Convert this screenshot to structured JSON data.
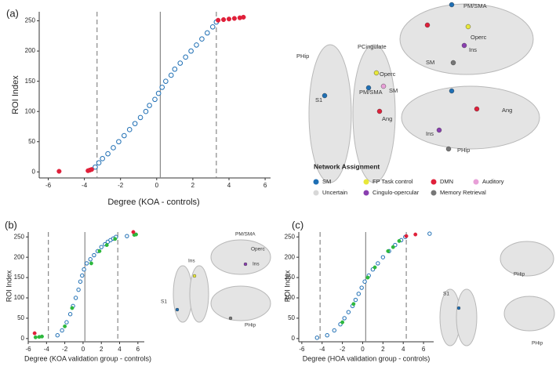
{
  "chart_data": [
    {
      "type": "scatter",
      "x_label": "Degree (KOA - controls)",
      "y_label": "ROI Index",
      "xlim": [
        -6.5,
        6.3
      ],
      "ylim": [
        -10,
        265
      ],
      "xticks": [
        -6,
        -4,
        -2,
        0,
        2,
        4,
        6
      ],
      "yticks": [
        0,
        50,
        100,
        150,
        200,
        250
      ],
      "vlines": [
        {
          "x": -3.3,
          "dashed": true
        },
        {
          "x": 0.2,
          "dashed": false
        },
        {
          "x": 3.3,
          "dashed": true
        }
      ],
      "series": [
        {
          "color": "#1f6fb4",
          "marker": "hollow",
          "x": [
            -3.4,
            -3.2,
            -3.0,
            -2.7,
            -2.4,
            -2.1,
            -1.8,
            -1.5,
            -1.2,
            -0.9,
            -0.6,
            -0.4,
            -0.1,
            0.1,
            0.3,
            0.5,
            0.8,
            1.0,
            1.3,
            1.6,
            1.9,
            2.2,
            2.5,
            2.8,
            3.1,
            3.3
          ],
          "values": [
            8,
            15,
            22,
            30,
            40,
            50,
            60,
            70,
            80,
            90,
            100,
            110,
            120,
            130,
            140,
            150,
            160,
            170,
            180,
            190,
            200,
            210,
            220,
            230,
            240,
            248
          ]
        },
        {
          "color": "#e0203a",
          "marker": "filled",
          "x": [
            -5.4,
            -3.8,
            -3.7,
            -3.6,
            3.4,
            3.7,
            4.0,
            4.3,
            4.6,
            4.8
          ],
          "values": [
            1,
            2,
            3,
            4,
            251,
            252,
            253,
            254,
            255,
            256
          ]
        }
      ]
    },
    {
      "type": "scatter",
      "x_label": "Degree (KOA validation group - controls)",
      "y_label": "ROI Index",
      "xlim": [
        -6,
        6.7
      ],
      "ylim": [
        -8,
        262
      ],
      "xticks": [
        -6,
        -4,
        -2,
        0,
        2,
        4,
        6
      ],
      "yticks": [
        0,
        50,
        100,
        150,
        200,
        250
      ],
      "vlines": [
        {
          "x": -3.8,
          "dashed": true
        },
        {
          "x": 0.2,
          "dashed": false
        },
        {
          "x": 3.8,
          "dashed": true
        }
      ],
      "series": [
        {
          "color": "#1f6fb4",
          "marker": "hollow",
          "x": [
            -2.8,
            -2.3,
            -1.8,
            -1.4,
            -1.1,
            -0.8,
            -0.5,
            -0.3,
            -0.1,
            0.1,
            0.4,
            0.8,
            1.2,
            1.6,
            2.0,
            2.4,
            2.7,
            3.0,
            3.3,
            3.6,
            4.8
          ],
          "values": [
            8,
            20,
            40,
            60,
            80,
            100,
            120,
            140,
            155,
            170,
            185,
            195,
            205,
            215,
            225,
            232,
            238,
            242,
            246,
            250,
            252
          ]
        },
        {
          "color": "#2db83d",
          "marker": "filled",
          "x": [
            -5.2,
            -4.8,
            -4.5,
            -2.0,
            -1.2,
            0.9,
            1.8,
            2.6,
            3.5,
            5.6,
            5.8
          ],
          "values": [
            3,
            4,
            5,
            30,
            75,
            185,
            215,
            230,
            245,
            255,
            256
          ]
        },
        {
          "color": "#e0203a",
          "marker": "filled",
          "x": [
            -5.3,
            5.5
          ],
          "values": [
            13,
            262
          ]
        }
      ]
    },
    {
      "type": "scatter",
      "x_label": "Degree (HOA validation group - controls)",
      "y_label": "ROI Index",
      "xlim": [
        -6.3,
        7
      ],
      "ylim": [
        -8,
        262
      ],
      "xticks": [
        -6,
        -4,
        -2,
        0,
        2,
        4,
        6
      ],
      "yticks": [
        0,
        50,
        100,
        150,
        200,
        250
      ],
      "vlines": [
        {
          "x": -4.2,
          "dashed": true
        },
        {
          "x": 0.3,
          "dashed": false
        },
        {
          "x": 4.3,
          "dashed": true
        }
      ],
      "series": [
        {
          "color": "#1f6fb4",
          "marker": "hollow",
          "x": [
            -4.5,
            -3.5,
            -2.8,
            -2.2,
            -1.8,
            -1.4,
            -1.0,
            -0.7,
            -0.4,
            -0.1,
            0.2,
            0.6,
            1.0,
            1.5,
            2.0,
            2.6,
            3.2,
            3.8,
            4.2,
            6.6
          ],
          "values": [
            2,
            8,
            20,
            35,
            50,
            65,
            80,
            95,
            110,
            125,
            140,
            155,
            170,
            185,
            200,
            215,
            230,
            242,
            250,
            258
          ]
        },
        {
          "color": "#2db83d",
          "marker": "filled",
          "x": [
            -2.0,
            -0.9,
            0.5,
            1.2,
            2.5,
            3.0,
            3.6
          ],
          "values": [
            40,
            85,
            150,
            175,
            215,
            225,
            240
          ]
        },
        {
          "color": "#e0203a",
          "marker": "filled",
          "x": [
            4.3,
            5.2
          ],
          "values": [
            252,
            256
          ]
        }
      ]
    }
  ],
  "figure": {
    "panel_labels": [
      "(a)",
      "(b)",
      "(c)"
    ],
    "brain_labels": {
      "a": [
        "PHip",
        "PCingulate",
        "S1",
        "PM/SMA",
        "Operc",
        "SM",
        "Ang",
        "PM/SMA",
        "Operc",
        "Ins",
        "SM",
        "Ang",
        "Ins",
        "PHip"
      ],
      "b": [
        "Ins",
        "S1",
        "PM/SMA",
        "Operc",
        "Ins",
        "PHip"
      ],
      "c": [
        "S1",
        "PHip",
        "PHip"
      ]
    },
    "legend": {
      "title": "Network Assignment",
      "items": [
        {
          "name": "SM",
          "color": "#1f6fb4"
        },
        {
          "name": "FP Task control",
          "color": "#e8e83a"
        },
        {
          "name": "DMN",
          "color": "#e0203a"
        },
        {
          "name": "Auditory",
          "color": "#e8a0d8"
        },
        {
          "name": "Uncertain",
          "color": "#d8d8d8"
        },
        {
          "name": "Cingulo-opercular",
          "color": "#8a3fb0"
        },
        {
          "name": "Memory Retrieval",
          "color": "#777777"
        }
      ]
    }
  }
}
